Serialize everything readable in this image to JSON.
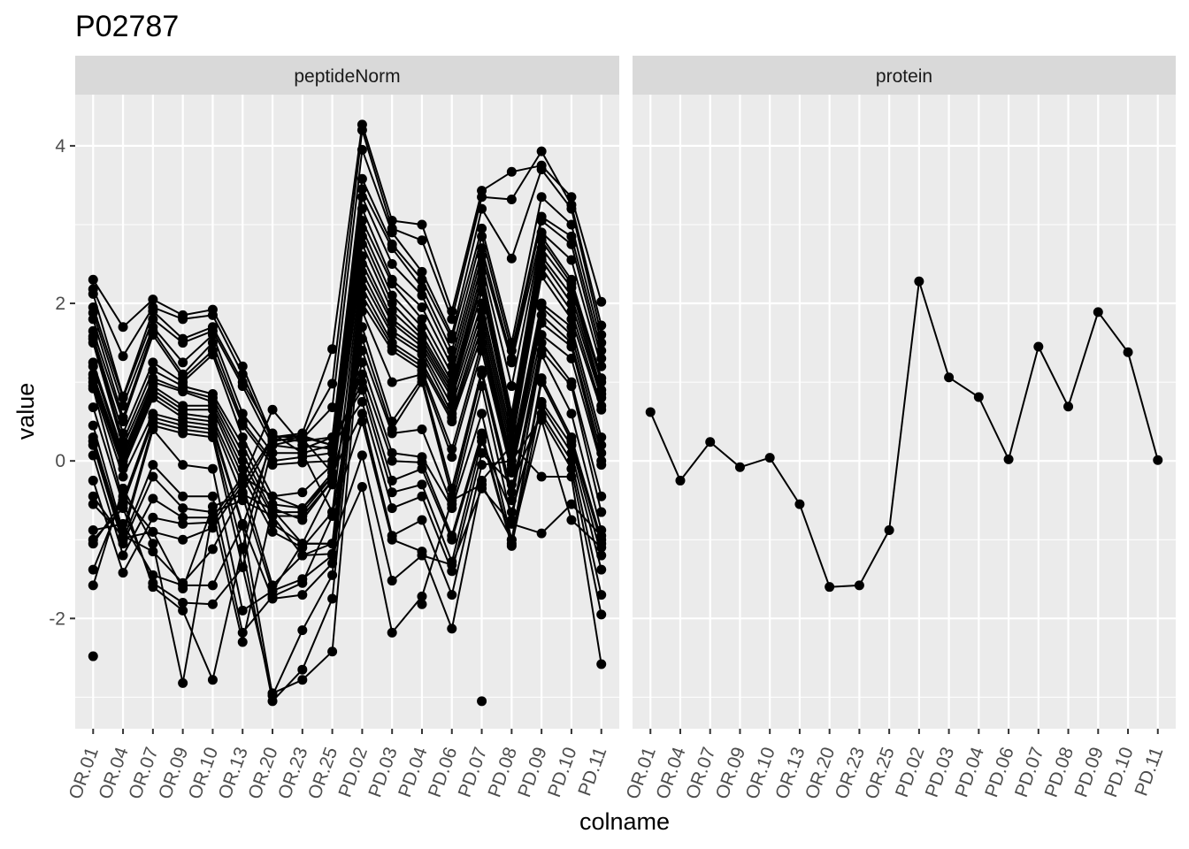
{
  "chart_data": {
    "type": "line",
    "title": "P02787",
    "xlabel": "colname",
    "ylabel": "value",
    "ylim": [
      -3.4,
      4.65
    ],
    "y_ticks": [
      -2,
      0,
      2,
      4
    ],
    "grid": true,
    "categories": [
      "OR.01",
      "OR.04",
      "OR.07",
      "OR.09",
      "OR.10",
      "OR.13",
      "OR.20",
      "OR.23",
      "OR.25",
      "PD.02",
      "PD.03",
      "PD.04",
      "PD.06",
      "PD.07",
      "PD.08",
      "PD.09",
      "PD.10",
      "PD.11"
    ],
    "panels": [
      {
        "name": "peptideNorm",
        "series": [
          {
            "values": [
              2.3,
              1.7,
              2.05,
              1.85,
              1.92,
              1.2,
              0.3,
              0.35,
              1.42,
              4.27,
              3.05,
              3.0,
              1.9,
              3.43,
              3.67,
              3.75,
              3.35,
              2.02
            ]
          },
          {
            "values": [
              2.18,
              1.33,
              1.95,
              1.8,
              1.85,
              1.1,
              0.25,
              0.3,
              0.98,
              4.2,
              2.95,
              2.8,
              1.8,
              3.35,
              3.32,
              3.93,
              3.25,
              1.72
            ]
          },
          {
            "values": [
              2.12,
              0.82,
              1.9,
              1.55,
              1.7,
              1.0,
              0.32,
              0.28,
              0.68,
              3.95,
              2.9,
              2.4,
              1.6,
              3.2,
              2.57,
              3.7,
              3.2,
              1.6
            ]
          },
          {
            "values": [
              1.95,
              0.8,
              1.8,
              1.5,
              1.65,
              0.95,
              0.2,
              0.15,
              0.3,
              3.58,
              2.75,
              2.3,
              1.55,
              2.95,
              1.5,
              3.35,
              3.0,
              1.5
            ]
          },
          {
            "values": [
              1.88,
              0.7,
              1.7,
              1.25,
              1.6,
              0.6,
              0.1,
              0.1,
              0.2,
              3.45,
              2.7,
              2.2,
              1.4,
              2.85,
              1.4,
              3.1,
              2.85,
              1.4
            ]
          },
          {
            "values": [
              1.8,
              0.55,
              1.65,
              1.1,
              1.5,
              0.5,
              0.0,
              0.05,
              0.1,
              3.35,
              2.5,
              2.1,
              1.3,
              2.7,
              1.3,
              3.05,
              2.75,
              1.3
            ]
          },
          {
            "values": [
              1.65,
              0.5,
              1.6,
              1.05,
              1.4,
              0.45,
              -0.05,
              -0.02,
              0.0,
              3.2,
              2.3,
              1.95,
              1.2,
              2.6,
              1.25,
              2.9,
              2.55,
              1.2
            ]
          },
          {
            "values": [
              1.58,
              0.35,
              1.25,
              1.0,
              1.35,
              0.3,
              -0.45,
              -0.4,
              -0.05,
              3.05,
              2.25,
              1.8,
              1.1,
              2.5,
              0.95,
              2.85,
              2.3,
              1.05
            ]
          },
          {
            "values": [
              1.55,
              0.25,
              1.15,
              0.95,
              0.85,
              0.2,
              -0.55,
              -0.6,
              -0.15,
              2.95,
              2.1,
              1.7,
              1.0,
              2.4,
              0.6,
              2.8,
              2.25,
              1.0
            ]
          },
          {
            "values": [
              1.5,
              0.18,
              1.05,
              0.9,
              0.8,
              0.1,
              -0.65,
              -0.65,
              -0.2,
              2.85,
              2.0,
              1.6,
              0.95,
              2.3,
              0.5,
              2.7,
              2.2,
              0.9
            ]
          },
          {
            "values": [
              1.25,
              0.1,
              1.0,
              0.88,
              0.75,
              0.0,
              -0.7,
              -0.7,
              -0.25,
              2.75,
              1.9,
              1.55,
              0.9,
              2.25,
              0.45,
              2.6,
              2.1,
              0.85
            ]
          },
          {
            "values": [
              1.2,
              0.05,
              0.95,
              0.7,
              0.7,
              -0.1,
              -0.8,
              -1.05,
              -0.3,
              2.6,
              1.8,
              1.5,
              0.85,
              2.15,
              0.4,
              2.55,
              2.0,
              0.8
            ]
          },
          {
            "values": [
              1.1,
              0.0,
              0.9,
              0.65,
              0.65,
              -0.2,
              -0.9,
              -1.1,
              -0.65,
              2.5,
              1.75,
              1.45,
              0.8,
              2.0,
              0.3,
              2.45,
              1.9,
              0.7
            ]
          },
          {
            "values": [
              1.05,
              -0.05,
              0.85,
              0.6,
              0.55,
              -0.3,
              -1.58,
              -1.2,
              -1.05,
              2.4,
              1.65,
              1.4,
              0.7,
              1.9,
              0.2,
              2.35,
              1.8,
              0.65
            ]
          },
          {
            "values": [
              1.0,
              -0.1,
              0.8,
              0.55,
              0.5,
              -0.45,
              -1.65,
              -1.5,
              -1.2,
              2.3,
              1.6,
              1.35,
              0.6,
              1.8,
              0.1,
              2.0,
              1.7,
              0.3
            ]
          },
          {
            "values": [
              0.95,
              -0.2,
              0.6,
              0.5,
              0.45,
              -0.8,
              -1.75,
              -1.7,
              -1.3,
              2.2,
              1.5,
              1.25,
              0.55,
              1.7,
              0.0,
              1.95,
              1.6,
              0.2
            ]
          },
          {
            "values": [
              0.92,
              -0.5,
              0.55,
              0.45,
              0.4,
              -0.82,
              -2.98,
              -2.15,
              -1.45,
              2.1,
              1.45,
              1.2,
              0.5,
              1.6,
              -0.05,
              1.85,
              1.5,
              0.1
            ]
          },
          {
            "values": [
              0.68,
              -0.55,
              0.5,
              0.4,
              0.35,
              -1.12,
              -3.05,
              -2.65,
              -1.75,
              2.0,
              1.4,
              1.15,
              0.15,
              1.5,
              -0.1,
              1.75,
              1.45,
              0.0
            ]
          },
          {
            "values": [
              0.45,
              -0.9,
              0.45,
              0.35,
              0.3,
              -1.35,
              -2.95,
              -2.78,
              -2.42,
              1.9,
              1.0,
              1.1,
              0.05,
              1.4,
              -0.15,
              1.6,
              1.3,
              -0.05
            ]
          },
          {
            "values": [
              0.3,
              -0.95,
              0.4,
              -0.05,
              -0.1,
              -1.9,
              -1.65,
              -1.05,
              -1.05,
              1.7,
              0.5,
              1.05,
              -0.35,
              1.15,
              -0.4,
              1.5,
              1.0,
              -0.45
            ]
          },
          {
            "values": [
              0.25,
              -1.0,
              -0.05,
              -0.45,
              -0.45,
              -2.18,
              -1.72,
              -1.55,
              -0.7,
              1.55,
              0.4,
              1.0,
              -0.45,
              1.1,
              -0.5,
              1.4,
              0.95,
              -0.65
            ]
          },
          {
            "values": [
              0.2,
              -1.05,
              -0.2,
              -0.6,
              -0.65,
              -2.3,
              -0.6,
              -0.75,
              -0.25,
              1.4,
              0.35,
              0.4,
              -0.55,
              0.95,
              -0.75,
              1.35,
              0.6,
              -0.88
            ]
          },
          {
            "values": [
              0.07,
              -1.2,
              -0.48,
              -0.72,
              -0.72,
              -0.2,
              -0.45,
              -0.6,
              -0.2,
              1.25,
              0.1,
              0.05,
              -0.6,
              0.6,
              -1.0,
              1.05,
              0.3,
              -1.0
            ]
          },
          {
            "values": [
              -0.25,
              -1.42,
              -0.72,
              -0.8,
              -0.78,
              -0.25,
              0.65,
              0.2,
              0.15,
              1.1,
              0.0,
              -0.02,
              -0.95,
              0.35,
              -1.05,
              1.0,
              0.25,
              -1.05
            ]
          },
          {
            "values": [
              -0.45,
              -0.98,
              -0.9,
              -1.0,
              -0.85,
              -0.3,
              0.3,
              0.32,
              0.2,
              1.0,
              -0.25,
              -0.1,
              -1.0,
              0.3,
              -1.08,
              0.75,
              0.2,
              -1.2
            ]
          },
          {
            "values": [
              -0.55,
              -0.95,
              -1.15,
              -1.55,
              -1.12,
              -0.4,
              0.28,
              0.25,
              0.3,
              0.9,
              -0.4,
              -0.3,
              -1.28,
              0.25,
              -0.65,
              0.7,
              0.1,
              -1.38
            ]
          },
          {
            "values": [
              -0.88,
              -0.8,
              -1.45,
              -1.58,
              -1.58,
              -0.82,
              0.25,
              0.3,
              0.2,
              0.75,
              -0.6,
              -0.45,
              -1.4,
              0.1,
              -0.3,
              0.6,
              0.0,
              -1.7
            ]
          },
          {
            "values": [
              -1.0,
              -0.6,
              -1.55,
              -1.8,
              -1.82,
              -1.35,
              0.2,
              0.28,
              -0.15,
              0.6,
              -0.95,
              -0.75,
              -1.7,
              -0.05,
              0.0,
              0.55,
              -0.1,
              -1.95
            ]
          },
          {
            "values": [
              -1.05,
              -0.5,
              -1.6,
              -1.9,
              -2.78,
              -1.1,
              0.35,
              0.1,
              -0.65,
              0.5,
              -1.0,
              -1.15,
              -2.13,
              -0.25,
              0.2,
              -0.2,
              -0.2,
              -2.58
            ]
          },
          {
            "values": [
              -1.38,
              -0.45,
              -0.9,
              -1.62,
              -0.58,
              -0.42,
              -0.62,
              -1.05,
              -1.05,
              0.07,
              -1.52,
              -1.2,
              -1.32,
              -0.35,
              -0.8,
              -0.92,
              -0.55,
              -0.95
            ]
          },
          {
            "values": [
              -1.58,
              -0.35,
              -1.05,
              -2.82,
              -0.65,
              -0.5,
              -0.7,
              -1.2,
              -1.18,
              -0.33,
              -2.18,
              -1.72,
              -0.5,
              -0.3,
              -1.0,
              0.52,
              -0.75,
              -1.1
            ]
          },
          {
            "values": [
              -2.48,
              null,
              null,
              null,
              null,
              null,
              null,
              null,
              null,
              null,
              null,
              -1.82,
              null,
              -3.05,
              null,
              null,
              null,
              null
            ]
          }
        ]
      },
      {
        "name": "protein",
        "series": [
          {
            "values": [
              0.62,
              -0.25,
              0.24,
              -0.08,
              0.04,
              -0.55,
              -1.6,
              -1.58,
              -0.88,
              2.28,
              1.06,
              0.81,
              0.02,
              1.45,
              0.69,
              1.89,
              1.38,
              0.01
            ]
          }
        ]
      }
    ]
  }
}
